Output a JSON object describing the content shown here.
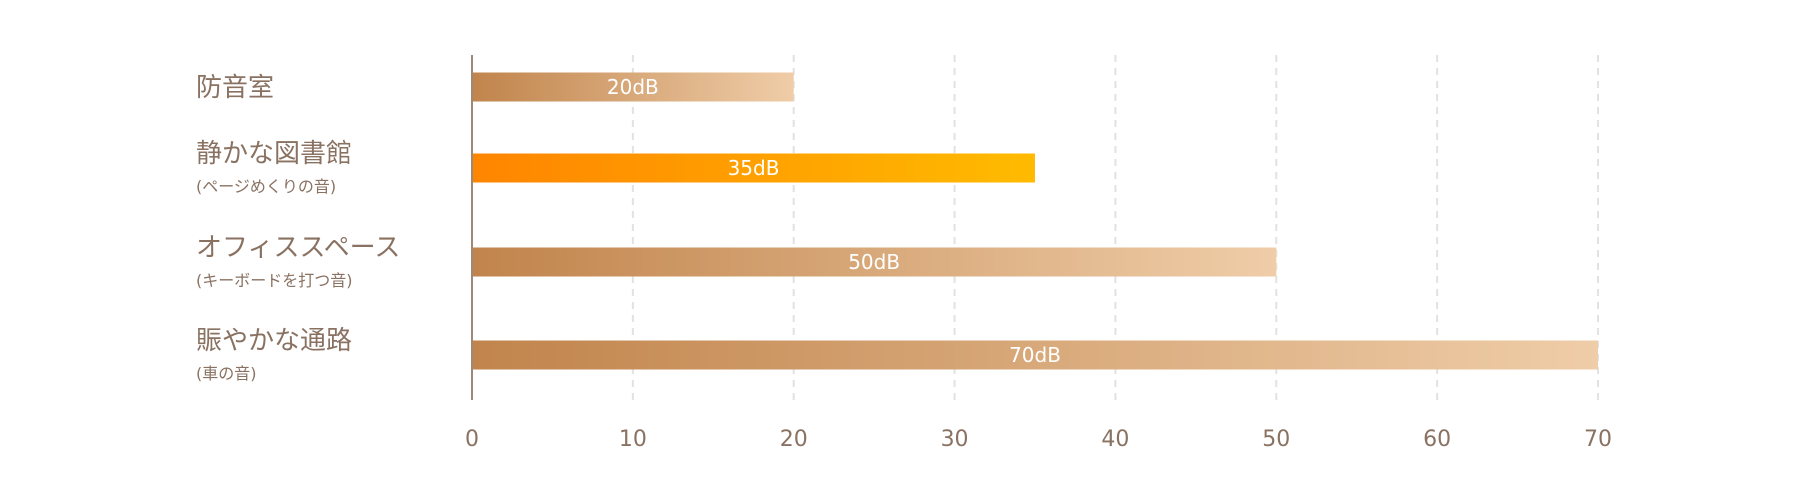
{
  "chart_data": {
    "type": "bar",
    "orientation": "horizontal",
    "categories": [
      {
        "label": "防音室",
        "sub": ""
      },
      {
        "label": "静かな図書館",
        "sub": "(ページめくりの音)"
      },
      {
        "label": "オフィススペース",
        "sub": "(キーボードを打つ音)"
      },
      {
        "label": "賑やかな通路",
        "sub": "(車の音)"
      }
    ],
    "values": [
      20,
      35,
      50,
      70
    ],
    "value_labels": [
      "20dB",
      "35dB",
      "50dB",
      "70dB"
    ],
    "highlight_index": 1,
    "xlim": [
      0,
      70
    ],
    "xticks": [
      0,
      10,
      20,
      30,
      40,
      50,
      60,
      70
    ],
    "grid": true,
    "colors": {
      "bar_start": "#c1844c",
      "bar_end": "#efcda8",
      "highlight_start": "#ff8500",
      "highlight_end": "#ffbb00",
      "axis": "#9e8878",
      "grid": "#e2e2e2",
      "text": "#8a7262"
    }
  }
}
